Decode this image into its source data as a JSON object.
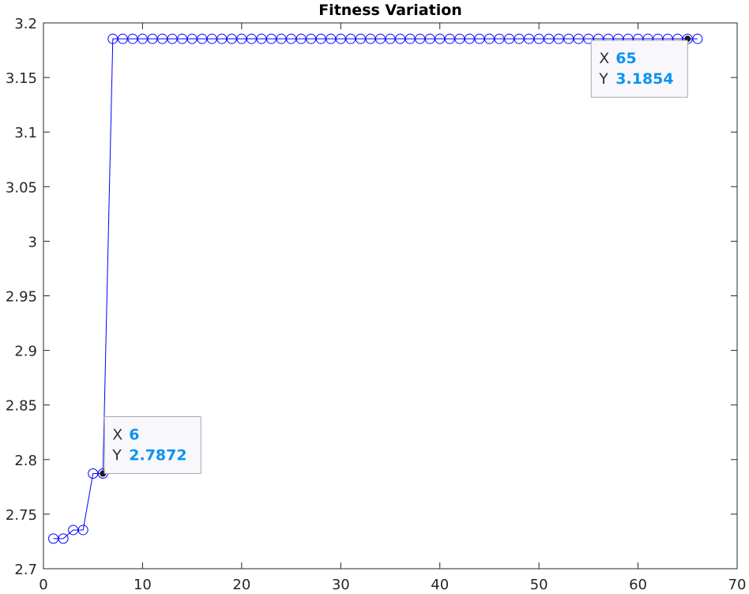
{
  "chart_data": {
    "type": "line",
    "title": "Fitness Variation",
    "xlabel": "",
    "ylabel": "",
    "xlim": [
      0,
      70
    ],
    "ylim": [
      2.7,
      3.2
    ],
    "x_ticks": [
      0,
      10,
      20,
      30,
      40,
      50,
      60,
      70
    ],
    "y_ticks": [
      2.7,
      2.75,
      2.8,
      2.85,
      2.9,
      2.95,
      3,
      3.05,
      3.1,
      3.15,
      3.2
    ],
    "x_tick_labels": [
      "0",
      "10",
      "20",
      "30",
      "40",
      "50",
      "60",
      "70"
    ],
    "y_tick_labels": [
      "2.7",
      "2.75",
      "2.8",
      "2.85",
      "2.9",
      "2.95",
      "3",
      "3.05",
      "3.1",
      "3.15",
      "3.2"
    ],
    "grid": false,
    "line_color": "#0000ff",
    "marker": "circle",
    "series": [
      {
        "x": [
          1,
          2,
          3,
          4,
          5,
          6,
          7,
          8,
          9,
          10,
          11,
          12,
          13,
          14,
          15,
          16,
          17,
          18,
          19,
          20,
          21,
          22,
          23,
          24,
          25,
          26,
          27,
          28,
          29,
          30,
          31,
          32,
          33,
          34,
          35,
          36,
          37,
          38,
          39,
          40,
          41,
          42,
          43,
          44,
          45,
          46,
          47,
          48,
          49,
          50,
          51,
          52,
          53,
          54,
          55,
          56,
          57,
          58,
          59,
          60,
          61,
          62,
          63,
          64,
          65,
          66
        ],
        "y": [
          2.7276,
          2.7276,
          2.7355,
          2.7355,
          2.7872,
          2.7872,
          3.1854,
          3.1854,
          3.1854,
          3.1854,
          3.1854,
          3.1854,
          3.1854,
          3.1854,
          3.1854,
          3.1854,
          3.1854,
          3.1854,
          3.1854,
          3.1854,
          3.1854,
          3.1854,
          3.1854,
          3.1854,
          3.1854,
          3.1854,
          3.1854,
          3.1854,
          3.1854,
          3.1854,
          3.1854,
          3.1854,
          3.1854,
          3.1854,
          3.1854,
          3.1854,
          3.1854,
          3.1854,
          3.1854,
          3.1854,
          3.1854,
          3.1854,
          3.1854,
          3.1854,
          3.1854,
          3.1854,
          3.1854,
          3.1854,
          3.1854,
          3.1854,
          3.1854,
          3.1854,
          3.1854,
          3.1854,
          3.1854,
          3.1854,
          3.1854,
          3.1854,
          3.1854,
          3.1854,
          3.1854,
          3.1854,
          3.1854,
          3.1854,
          3.1854,
          3.1854
        ]
      }
    ],
    "datatips": [
      {
        "x": 6,
        "y": 2.7872,
        "x_label": "X",
        "y_label": "Y",
        "x_text": "6",
        "y_text": "2.7872"
      },
      {
        "x": 65,
        "y": 3.1854,
        "x_label": "X",
        "y_label": "Y",
        "x_text": "65",
        "y_text": "3.1854"
      }
    ],
    "datatip_value_color": "#0b93f2"
  }
}
